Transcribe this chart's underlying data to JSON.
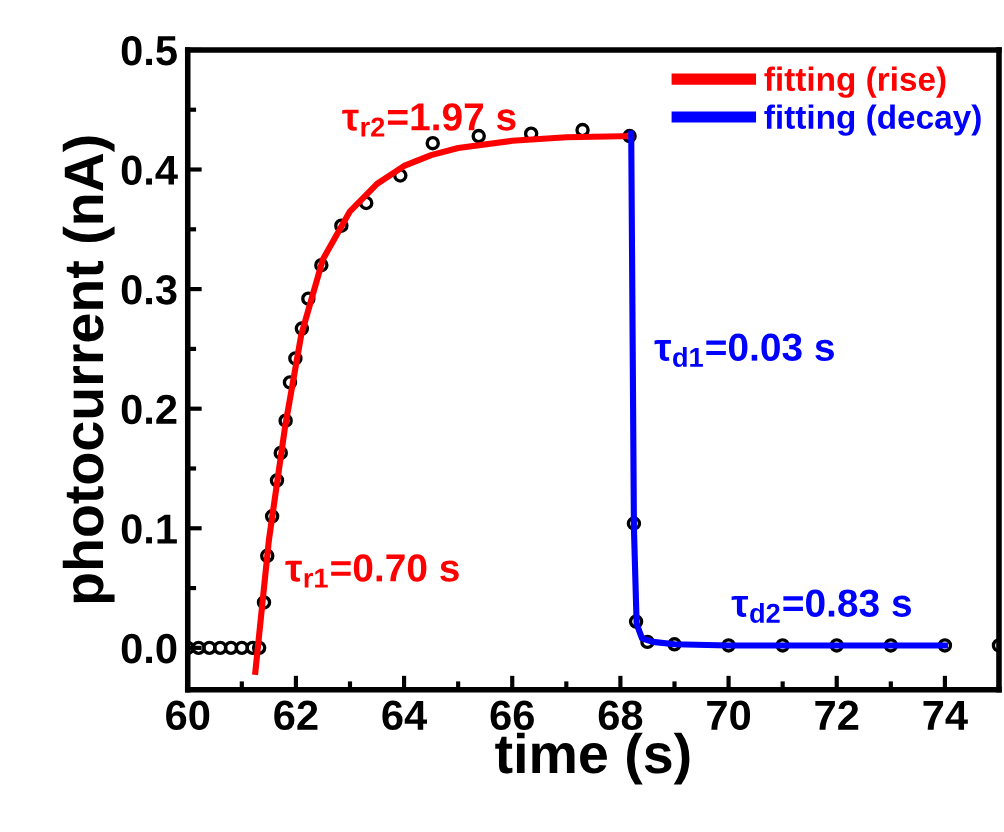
{
  "chart_data": {
    "type": "scatter",
    "xlabel": "time (s)",
    "ylabel": "photocurrent (nA)",
    "xlim": [
      60,
      75
    ],
    "ylim": [
      -0.035,
      0.5
    ],
    "xticks": [
      60,
      62,
      64,
      66,
      68,
      70,
      72,
      74
    ],
    "yticks": [
      {
        "value": 0,
        "label": "0.0"
      },
      0.1,
      0.2,
      0.3,
      0.4,
      0.5
    ],
    "grid": false,
    "legend": "top right",
    "series": [
      {
        "marker": "circle",
        "color": "#000000",
        "x": [
          60.0,
          60.2,
          60.4,
          60.6,
          60.8,
          61.0,
          61.2,
          61.32,
          61.41,
          61.47,
          61.56,
          61.65,
          61.72,
          61.81,
          61.89,
          61.99,
          62.11,
          62.23,
          62.47,
          62.84,
          63.3,
          63.93,
          64.53,
          65.38,
          66.35,
          67.3,
          68.17,
          68.25,
          68.29,
          68.5,
          69.0,
          70.0,
          71.0,
          72.0,
          73.0,
          74.0,
          75.0
        ],
        "values": [
          0.0,
          0.0,
          0.0,
          0.0,
          0.0,
          0.0,
          0.0,
          0.0,
          0.038,
          0.077,
          0.11,
          0.14,
          0.163,
          0.19,
          0.222,
          0.242,
          0.267,
          0.292,
          0.32,
          0.353,
          0.372,
          0.395,
          0.422,
          0.428,
          0.43,
          0.433,
          0.428,
          0.104,
          0.022,
          0.005,
          0.003,
          0.002,
          0.002,
          0.002,
          0.002,
          0.002,
          0.002
        ]
      },
      {
        "type": "line",
        "name": "fitting (rise)",
        "color": "#ff0000",
        "x": [
          61.25,
          61.5,
          61.8,
          62.1,
          62.5,
          63.0,
          63.5,
          64.0,
          64.5,
          65.0,
          66.0,
          67.0,
          68.2
        ],
        "values": [
          -0.02,
          0.09,
          0.185,
          0.262,
          0.325,
          0.365,
          0.388,
          0.403,
          0.412,
          0.418,
          0.424,
          0.427,
          0.428
        ]
      },
      {
        "type": "line",
        "name": "fitting (decay)",
        "color": "#0000ff",
        "x": [
          68.2,
          68.25,
          68.3,
          68.4,
          68.6,
          69.0,
          70.0,
          72.0,
          74.0
        ],
        "values": [
          0.43,
          0.1,
          0.02,
          0.008,
          0.005,
          0.003,
          0.002,
          0.002,
          0.002
        ]
      }
    ],
    "annotations": [
      "τ$_{r2}$=1.97 s",
      "τ$_{r1}$=0.70 s",
      "τ$_{d1}$=0.03 s",
      "τ$_{d2}$=0.83 s"
    ]
  }
}
